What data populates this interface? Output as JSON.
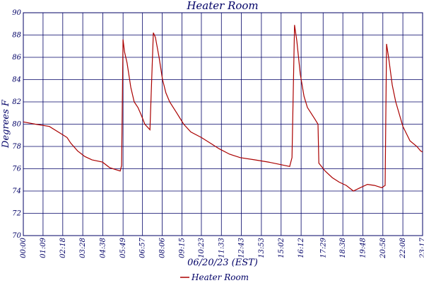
{
  "chart_data": {
    "type": "line",
    "title": "Heater Room",
    "xlabel": "06/20/23 (EST)",
    "ylabel": "Degrees F",
    "xlim": [
      0,
      1397
    ],
    "ylim": [
      70,
      90
    ],
    "yticks": [
      70,
      72,
      74,
      76,
      78,
      80,
      82,
      84,
      86,
      88,
      90
    ],
    "xticks": [
      {
        "value": 0,
        "label": "00:00"
      },
      {
        "value": 69,
        "label": "01:09"
      },
      {
        "value": 138,
        "label": "02:18"
      },
      {
        "value": 208,
        "label": "03:28"
      },
      {
        "value": 278,
        "label": "04:38"
      },
      {
        "value": 349,
        "label": "05:49"
      },
      {
        "value": 417,
        "label": "06:57"
      },
      {
        "value": 486,
        "label": "08:06"
      },
      {
        "value": 555,
        "label": "09:15"
      },
      {
        "value": 623,
        "label": "10:23"
      },
      {
        "value": 693,
        "label": "11:33"
      },
      {
        "value": 763,
        "label": "12:43"
      },
      {
        "value": 833,
        "label": "13:53"
      },
      {
        "value": 902,
        "label": "15:02"
      },
      {
        "value": 972,
        "label": "16:12"
      },
      {
        "value": 1049,
        "label": "17:29"
      },
      {
        "value": 1118,
        "label": "18:38"
      },
      {
        "value": 1188,
        "label": "19:48"
      },
      {
        "value": 1258,
        "label": "20:58"
      },
      {
        "value": 1328,
        "label": "22:08"
      },
      {
        "value": 1397,
        "label": "23:17"
      }
    ],
    "grid": true,
    "legend": "bottom",
    "x": [
      0,
      42,
      91,
      141,
      153,
      166,
      190,
      215,
      240,
      277,
      302,
      339,
      344,
      349,
      354,
      363,
      376,
      388,
      401,
      413,
      425,
      443,
      445,
      455,
      462,
      475,
      487,
      499,
      512,
      537,
      561,
      586,
      623,
      660,
      685,
      722,
      759,
      809,
      858,
      895,
      932,
      940,
      949,
      957,
      969,
      982,
      994,
      1019,
      1031,
      1034,
      1056,
      1081,
      1105,
      1130,
      1155,
      1179,
      1204,
      1229,
      1254,
      1266,
      1271,
      1278,
      1291,
      1303,
      1328,
      1353,
      1377,
      1390,
      1397
    ],
    "series": [
      {
        "name": "Heater Room",
        "color": "#aa0000",
        "values": [
          80.2,
          80.0,
          79.8,
          79.0,
          78.8,
          78.3,
          77.6,
          77.1,
          76.8,
          76.6,
          76.1,
          75.8,
          76.3,
          87.6,
          86.5,
          85.5,
          83.3,
          82.0,
          81.5,
          80.8,
          80.0,
          79.5,
          81.0,
          88.2,
          87.8,
          86.0,
          84.0,
          82.8,
          82.0,
          81.0,
          80.0,
          79.3,
          78.8,
          78.2,
          77.8,
          77.3,
          77.0,
          76.8,
          76.6,
          76.4,
          76.2,
          77.0,
          88.9,
          87.5,
          84.5,
          82.5,
          81.5,
          80.5,
          80.0,
          76.5,
          75.8,
          75.2,
          74.8,
          74.5,
          74.0,
          74.3,
          74.6,
          74.5,
          74.3,
          74.5,
          87.2,
          86.0,
          83.5,
          82.0,
          79.8,
          78.5,
          78.0,
          77.6,
          77.5
        ]
      }
    ]
  }
}
